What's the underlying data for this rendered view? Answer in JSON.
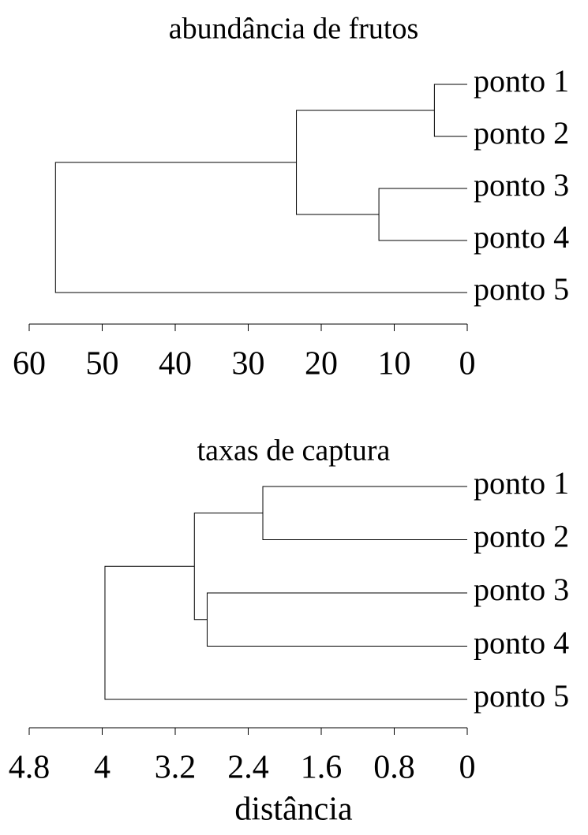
{
  "chart_data": [
    {
      "type": "dendrogram",
      "title": "abundância de frutos",
      "leaves": [
        "ponto 1",
        "ponto 2",
        "ponto 3",
        "ponto 4",
        "ponto 5"
      ],
      "merges": [
        {
          "children": [
            0,
            1
          ],
          "height": 4.5
        },
        {
          "children": [
            2,
            3
          ],
          "height": 12.1
        },
        {
          "children": [
            5,
            6
          ],
          "height": 23.4
        },
        {
          "children": [
            7,
            4
          ],
          "height": 56.4
        }
      ],
      "xlim": [
        0,
        60
      ],
      "x_reversed": true,
      "xticks": [
        60,
        50,
        40,
        30,
        20,
        10,
        0
      ],
      "color": "#000000"
    },
    {
      "type": "dendrogram",
      "title": "taxas de captura",
      "xlabel": "distância",
      "leaves": [
        "ponto 1",
        "ponto 2",
        "ponto 3",
        "ponto 4",
        "ponto 5"
      ],
      "merges": [
        {
          "children": [
            0,
            1
          ],
          "height": 2.24
        },
        {
          "children": [
            2,
            3
          ],
          "height": 2.85
        },
        {
          "children": [
            5,
            6
          ],
          "height": 2.99
        },
        {
          "children": [
            7,
            4
          ],
          "height": 3.97
        }
      ],
      "xlim": [
        0,
        4.8
      ],
      "x_reversed": true,
      "xticks": [
        4.8,
        4,
        3.2,
        2.4,
        1.6,
        0.8,
        0
      ],
      "color": "#000000"
    }
  ]
}
